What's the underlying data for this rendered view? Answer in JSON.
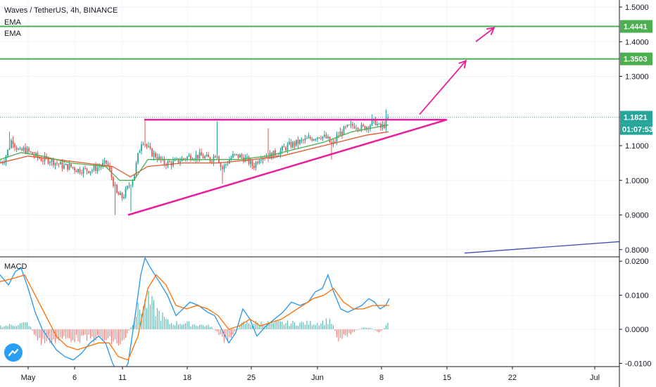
{
  "header": {
    "title": "Waves / TetherUS, 4h, BINANCE",
    "ema1": "EMA",
    "ema2": "EMA",
    "macd": "MACD"
  },
  "price_axis": {
    "ticks": [
      "1.5000",
      "1.4000",
      "1.3000",
      "1.1000",
      "1.0000",
      "0.9000",
      "0.8000"
    ],
    "tick_values": [
      1.5,
      1.4,
      1.3,
      1.1,
      1.0,
      0.9,
      0.8
    ]
  },
  "price_tags": {
    "resistance_high": "1.4441",
    "resistance_low": "1.3503",
    "last_price": "1.1821",
    "countdown": "01:07:53"
  },
  "macd_axis": {
    "ticks": [
      "0.0200",
      "0.0100",
      "0.0000",
      "-0.0100"
    ],
    "tick_values": [
      0.02,
      0.01,
      0.0,
      -0.01
    ]
  },
  "time_axis": {
    "labels": [
      "May",
      "6",
      "11",
      "18",
      "25",
      "Jun",
      "8",
      "15",
      "22",
      "Jul"
    ]
  },
  "colors": {
    "up": "#26a69a",
    "down": "#ef5350",
    "ema_fast": "#4caf50",
    "ema_slow": "#e4572e",
    "resistance": "#4caf50",
    "pattern": "#e91e9b",
    "macd_line": "#2196f3",
    "signal_line": "#ff6d00",
    "trend": "#3f51b5",
    "last_price": "#26a69a"
  },
  "chart_data": [
    {
      "type": "candlestick",
      "title": "Waves / TetherUS, 4h, BINANCE",
      "ylim": [
        0.78,
        1.53
      ],
      "x_labels": [
        "May",
        "6",
        "11",
        "18",
        "25",
        "Jun",
        "8",
        "15",
        "22",
        "Jul"
      ],
      "close_path": [
        [
          0,
          1.05
        ],
        [
          6,
          1.06
        ],
        [
          12,
          1.09
        ],
        [
          17,
          1.12
        ],
        [
          22,
          1.1
        ],
        [
          28,
          1.08
        ],
        [
          34,
          1.09
        ],
        [
          42,
          1.08
        ],
        [
          50,
          1.07
        ],
        [
          60,
          1.06
        ],
        [
          70,
          1.06
        ],
        [
          80,
          1.05
        ],
        [
          90,
          1.04
        ],
        [
          100,
          1.04
        ],
        [
          110,
          1.03
        ],
        [
          120,
          1.03
        ],
        [
          130,
          1.03
        ],
        [
          142,
          1.04
        ],
        [
          152,
          1.05
        ],
        [
          160,
          1.0
        ],
        [
          166,
          0.96
        ],
        [
          174,
          0.95
        ],
        [
          182,
          0.98
        ],
        [
          190,
          1.01
        ],
        [
          196,
          1.07
        ],
        [
          202,
          1.12
        ],
        [
          208,
          1.1
        ],
        [
          214,
          1.08
        ],
        [
          222,
          1.07
        ],
        [
          232,
          1.05
        ],
        [
          245,
          1.05
        ],
        [
          258,
          1.06
        ],
        [
          270,
          1.07
        ],
        [
          285,
          1.07
        ],
        [
          300,
          1.06
        ],
        [
          308,
          1.08
        ],
        [
          315,
          1.03
        ],
        [
          322,
          1.05
        ],
        [
          330,
          1.07
        ],
        [
          340,
          1.07
        ],
        [
          350,
          1.06
        ],
        [
          360,
          1.04
        ],
        [
          370,
          1.07
        ],
        [
          382,
          1.07
        ],
        [
          395,
          1.08
        ],
        [
          410,
          1.1
        ],
        [
          425,
          1.11
        ],
        [
          440,
          1.12
        ],
        [
          455,
          1.13
        ],
        [
          465,
          1.12
        ],
        [
          472,
          1.1
        ],
        [
          480,
          1.13
        ],
        [
          492,
          1.15
        ],
        [
          505,
          1.16
        ],
        [
          515,
          1.15
        ],
        [
          525,
          1.16
        ],
        [
          533,
          1.17
        ],
        [
          540,
          1.15
        ],
        [
          546,
          1.16
        ],
        [
          552,
          1.18
        ]
      ],
      "spikes": [
        [
          14,
          1.14
        ],
        [
          205,
          1.175
        ],
        [
          308,
          1.17
        ],
        [
          380,
          1.15
        ],
        [
          528,
          1.19
        ],
        [
          549,
          1.205
        ]
      ],
      "lows": [
        [
          164,
          0.9
        ],
        [
          185,
          0.91
        ],
        [
          316,
          0.99
        ],
        [
          472,
          1.06
        ]
      ],
      "ema_fast_path": [
        [
          0,
          1.06
        ],
        [
          30,
          1.08
        ],
        [
          60,
          1.07
        ],
        [
          100,
          1.05
        ],
        [
          150,
          1.04
        ],
        [
          170,
          1.0
        ],
        [
          190,
          1.0
        ],
        [
          210,
          1.06
        ],
        [
          250,
          1.06
        ],
        [
          300,
          1.06
        ],
        [
          340,
          1.06
        ],
        [
          380,
          1.07
        ],
        [
          420,
          1.09
        ],
        [
          460,
          1.11
        ],
        [
          500,
          1.14
        ],
        [
          552,
          1.16
        ]
      ],
      "ema_slow_path": [
        [
          0,
          1.05
        ],
        [
          40,
          1.07
        ],
        [
          80,
          1.06
        ],
        [
          120,
          1.05
        ],
        [
          160,
          1.04
        ],
        [
          185,
          1.01
        ],
        [
          210,
          1.04
        ],
        [
          260,
          1.05
        ],
        [
          310,
          1.05
        ],
        [
          360,
          1.06
        ],
        [
          400,
          1.07
        ],
        [
          440,
          1.09
        ],
        [
          480,
          1.11
        ],
        [
          520,
          1.13
        ],
        [
          552,
          1.14
        ]
      ],
      "resistance_levels": [
        1.4441,
        1.3503
      ],
      "last_price": 1.1821,
      "triangle": {
        "upper": [
          [
            205,
            1.175
          ],
          [
            635,
            1.175
          ]
        ],
        "lower": [
          [
            182,
            0.9
          ],
          [
            635,
            1.175
          ]
        ]
      },
      "projection_arrows": [
        [
          [
            596,
            1.19
          ],
          [
            662,
            1.345
          ]
        ],
        [
          [
            676,
            1.4
          ],
          [
            702,
            1.44
          ]
        ]
      ],
      "trend_line": [
        [
          660,
          0.79
        ],
        [
          880,
          0.823
        ]
      ]
    },
    {
      "type": "line",
      "title": "MACD",
      "ylim": [
        -0.011,
        0.021
      ],
      "series": [
        {
          "role": "macd",
          "points": [
            [
              0,
              0.016
            ],
            [
              12,
              0.013
            ],
            [
              22,
              0.017
            ],
            [
              30,
              0.018
            ],
            [
              40,
              0.012
            ],
            [
              50,
              0.005
            ],
            [
              60,
              0.0
            ],
            [
              70,
              -0.003
            ],
            [
              80,
              -0.006
            ],
            [
              92,
              -0.008
            ],
            [
              104,
              -0.009
            ],
            [
              116,
              -0.007
            ],
            [
              128,
              -0.004
            ],
            [
              140,
              -0.002
            ],
            [
              150,
              -0.004
            ],
            [
              160,
              -0.01
            ],
            [
              170,
              -0.014
            ],
            [
              182,
              -0.01
            ],
            [
              192,
              0.004
            ],
            [
              200,
              0.016
            ],
            [
              206,
              0.021
            ],
            [
              214,
              0.018
            ],
            [
              226,
              0.014
            ],
            [
              238,
              0.01
            ],
            [
              250,
              0.004
            ],
            [
              260,
              0.006
            ],
            [
              270,
              0.008
            ],
            [
              282,
              0.007
            ],
            [
              295,
              0.005
            ],
            [
              305,
              0.004
            ],
            [
              315,
              0.0
            ],
            [
              325,
              -0.004
            ],
            [
              335,
              -0.001
            ],
            [
              345,
              0.006
            ],
            [
              355,
              0.003
            ],
            [
              365,
              -0.002
            ],
            [
              378,
              0.001
            ],
            [
              390,
              0.003
            ],
            [
              402,
              0.005
            ],
            [
              414,
              0.008
            ],
            [
              426,
              0.007
            ],
            [
              438,
              0.008
            ],
            [
              448,
              0.011
            ],
            [
              458,
              0.012
            ],
            [
              466,
              0.016
            ],
            [
              474,
              0.011
            ],
            [
              484,
              0.006
            ],
            [
              494,
              0.005
            ],
            [
              504,
              0.006
            ],
            [
              514,
              0.007
            ],
            [
              524,
              0.009
            ],
            [
              532,
              0.008
            ],
            [
              540,
              0.006
            ],
            [
              548,
              0.007
            ],
            [
              553,
              0.009
            ]
          ]
        },
        {
          "role": "signal",
          "points": [
            [
              0,
              0.014
            ],
            [
              20,
              0.015
            ],
            [
              35,
              0.016
            ],
            [
              50,
              0.01
            ],
            [
              65,
              0.004
            ],
            [
              80,
              -0.002
            ],
            [
              95,
              -0.005
            ],
            [
              110,
              -0.006
            ],
            [
              125,
              -0.005
            ],
            [
              140,
              -0.004
            ],
            [
              155,
              -0.004
            ],
            [
              168,
              -0.008
            ],
            [
              182,
              -0.009
            ],
            [
              196,
              -0.002
            ],
            [
              210,
              0.012
            ],
            [
              222,
              0.016
            ],
            [
              236,
              0.013
            ],
            [
              250,
              0.007
            ],
            [
              265,
              0.006
            ],
            [
              280,
              0.007
            ],
            [
              295,
              0.006
            ],
            [
              310,
              0.004
            ],
            [
              325,
              0.0
            ],
            [
              340,
              0.001
            ],
            [
              355,
              0.003
            ],
            [
              370,
              0.001
            ],
            [
              385,
              0.002
            ],
            [
              400,
              0.003
            ],
            [
              415,
              0.005
            ],
            [
              430,
              0.007
            ],
            [
              445,
              0.009
            ],
            [
              460,
              0.01
            ],
            [
              474,
              0.012
            ],
            [
              488,
              0.008
            ],
            [
              502,
              0.006
            ],
            [
              516,
              0.006
            ],
            [
              530,
              0.007
            ],
            [
              545,
              0.007
            ],
            [
              553,
              0.007
            ]
          ]
        }
      ],
      "histogram_profile": [
        [
          0,
          0.001
        ],
        [
          40,
          0.002
        ],
        [
          55,
          -0.004
        ],
        [
          100,
          -0.003
        ],
        [
          140,
          -0.003
        ],
        [
          160,
          -0.004
        ],
        [
          175,
          -0.005
        ],
        [
          195,
          0.006
        ],
        [
          210,
          0.009
        ],
        [
          240,
          0.002
        ],
        [
          260,
          0.002
        ],
        [
          300,
          0.001
        ],
        [
          320,
          -0.004
        ],
        [
          345,
          0.002
        ],
        [
          370,
          0.002
        ],
        [
          410,
          0.002
        ],
        [
          450,
          0.002
        ],
        [
          470,
          0.003
        ],
        [
          480,
          -0.003
        ],
        [
          500,
          -0.001
        ],
        [
          520,
          0.001
        ],
        [
          540,
          -0.001
        ],
        [
          553,
          0.002
        ]
      ]
    }
  ]
}
